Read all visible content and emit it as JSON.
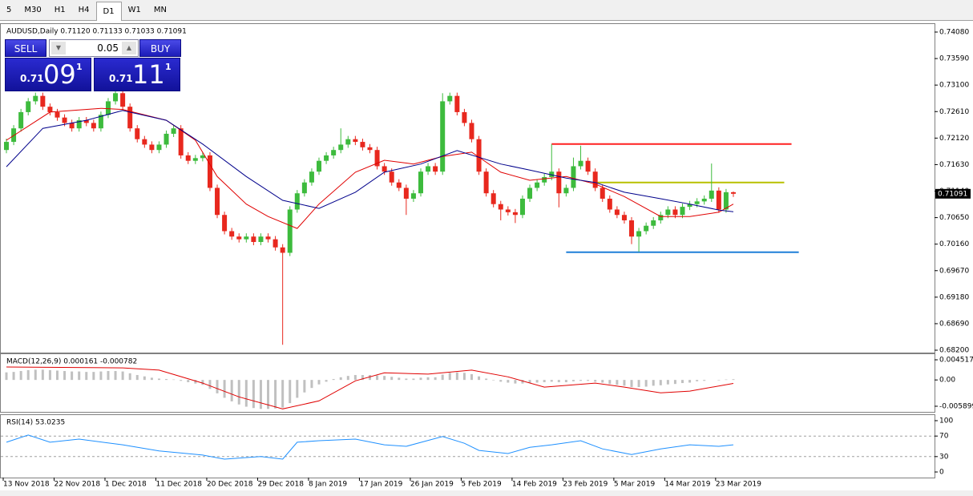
{
  "toolbar": {
    "tabs": [
      "5",
      "M30",
      "H1",
      "H4",
      "D1",
      "W1",
      "MN"
    ]
  },
  "trade_panel": {
    "sell": "SELL",
    "buy": "BUY",
    "lot": "0.05",
    "sell_price": {
      "small": "0.71",
      "big": "09",
      "pip": "1"
    },
    "buy_price": {
      "small": "0.71",
      "big": "11",
      "pip": "1"
    }
  },
  "chart_data": [
    {
      "type": "candlestick",
      "title": "AUDUSD,Daily  0.71120 0.71133 0.71033 0.71091",
      "up_color": "#3dbb3d",
      "down_color": "#e8281e",
      "ohlc": [
        [
          0.719,
          0.7211,
          0.7184,
          0.7205
        ],
        [
          0.7205,
          0.7236,
          0.7199,
          0.723
        ],
        [
          0.723,
          0.7266,
          0.7224,
          0.726
        ],
        [
          0.726,
          0.7286,
          0.7254,
          0.728
        ],
        [
          0.728,
          0.7296,
          0.7274,
          0.729
        ],
        [
          0.729,
          0.7296,
          0.7264,
          0.727
        ],
        [
          0.727,
          0.7276,
          0.7254,
          0.726
        ],
        [
          0.726,
          0.7266,
          0.7244,
          0.725
        ],
        [
          0.725,
          0.7256,
          0.7234,
          0.724
        ],
        [
          0.724,
          0.7246,
          0.7224,
          0.723
        ],
        [
          0.723,
          0.7251,
          0.7224,
          0.7245
        ],
        [
          0.7245,
          0.7251,
          0.7234,
          0.724
        ],
        [
          0.724,
          0.7246,
          0.7224,
          0.723
        ],
        [
          0.723,
          0.7261,
          0.7224,
          0.7255
        ],
        [
          0.7255,
          0.7286,
          0.7249,
          0.728
        ],
        [
          0.728,
          0.7301,
          0.7274,
          0.7295
        ],
        [
          0.7295,
          0.7301,
          0.7264,
          0.727
        ],
        [
          0.727,
          0.7276,
          0.7224,
          0.723
        ],
        [
          0.723,
          0.7236,
          0.7204,
          0.721
        ],
        [
          0.721,
          0.7216,
          0.7194,
          0.72
        ],
        [
          0.72,
          0.7206,
          0.7184,
          0.719
        ],
        [
          0.719,
          0.7206,
          0.7184,
          0.72
        ],
        [
          0.72,
          0.7226,
          0.7194,
          0.722
        ],
        [
          0.722,
          0.7236,
          0.7214,
          0.723
        ],
        [
          0.723,
          0.7236,
          0.7174,
          0.718
        ],
        [
          0.718,
          0.7186,
          0.7164,
          0.717
        ],
        [
          0.717,
          0.7181,
          0.7164,
          0.7175
        ],
        [
          0.7175,
          0.7186,
          0.7169,
          0.718
        ],
        [
          0.718,
          0.7186,
          0.7114,
          0.712
        ],
        [
          0.712,
          0.7126,
          0.7064,
          0.707
        ],
        [
          0.707,
          0.7076,
          0.7034,
          0.704
        ],
        [
          0.704,
          0.7046,
          0.7024,
          0.703
        ],
        [
          0.703,
          0.7036,
          0.7019,
          0.7025
        ],
        [
          0.7025,
          0.7036,
          0.7019,
          0.703
        ],
        [
          0.703,
          0.7036,
          0.7014,
          0.702
        ],
        [
          0.702,
          0.7036,
          0.7014,
          0.703
        ],
        [
          0.703,
          0.7036,
          0.7019,
          0.7025
        ],
        [
          0.7025,
          0.7031,
          0.7004,
          0.701
        ],
        [
          0.701,
          0.7016,
          0.683,
          0.7
        ],
        [
          0.7,
          0.7086,
          0.6994,
          0.708
        ],
        [
          0.708,
          0.7116,
          0.7074,
          0.711
        ],
        [
          0.711,
          0.7136,
          0.7104,
          0.713
        ],
        [
          0.713,
          0.7156,
          0.7124,
          0.715
        ],
        [
          0.715,
          0.7176,
          0.7144,
          0.717
        ],
        [
          0.717,
          0.7186,
          0.7164,
          0.718
        ],
        [
          0.718,
          0.7196,
          0.7174,
          0.719
        ],
        [
          0.719,
          0.723,
          0.7184,
          0.72
        ],
        [
          0.72,
          0.7216,
          0.7194,
          0.721
        ],
        [
          0.721,
          0.7216,
          0.7199,
          0.7205
        ],
        [
          0.7205,
          0.7211,
          0.7189,
          0.7195
        ],
        [
          0.7195,
          0.7201,
          0.7184,
          0.719
        ],
        [
          0.719,
          0.7196,
          0.7154,
          0.716
        ],
        [
          0.716,
          0.7166,
          0.7144,
          0.715
        ],
        [
          0.715,
          0.7156,
          0.7124,
          0.713
        ],
        [
          0.713,
          0.7136,
          0.7114,
          0.712
        ],
        [
          0.712,
          0.7126,
          0.707,
          0.71
        ],
        [
          0.71,
          0.7116,
          0.7094,
          0.711
        ],
        [
          0.711,
          0.7156,
          0.7104,
          0.715
        ],
        [
          0.715,
          0.7166,
          0.7144,
          0.716
        ],
        [
          0.716,
          0.7166,
          0.7144,
          0.715
        ],
        [
          0.715,
          0.7295,
          0.7144,
          0.728
        ],
        [
          0.728,
          0.7296,
          0.7274,
          0.729
        ],
        [
          0.729,
          0.7296,
          0.7254,
          0.726
        ],
        [
          0.726,
          0.7266,
          0.7234,
          0.724
        ],
        [
          0.724,
          0.7246,
          0.7204,
          0.721
        ],
        [
          0.721,
          0.7216,
          0.7144,
          0.715
        ],
        [
          0.715,
          0.7156,
          0.7104,
          0.711
        ],
        [
          0.711,
          0.7116,
          0.7084,
          0.709
        ],
        [
          0.709,
          0.7096,
          0.706,
          0.708
        ],
        [
          0.708,
          0.7086,
          0.7069,
          0.7075
        ],
        [
          0.7075,
          0.7081,
          0.7055,
          0.707
        ],
        [
          0.707,
          0.7106,
          0.7064,
          0.71
        ],
        [
          0.71,
          0.7126,
          0.7094,
          0.712
        ],
        [
          0.712,
          0.7136,
          0.7114,
          0.713
        ],
        [
          0.713,
          0.7146,
          0.7124,
          0.714
        ],
        [
          0.714,
          0.7201,
          0.7134,
          0.715
        ],
        [
          0.715,
          0.7156,
          0.7084,
          0.711
        ],
        [
          0.711,
          0.7126,
          0.7104,
          0.712
        ],
        [
          0.712,
          0.7176,
          0.7114,
          0.716
        ],
        [
          0.716,
          0.7198,
          0.7154,
          0.717
        ],
        [
          0.717,
          0.7176,
          0.7144,
          0.715
        ],
        [
          0.715,
          0.7156,
          0.7114,
          0.712
        ],
        [
          0.712,
          0.7126,
          0.7094,
          0.71
        ],
        [
          0.71,
          0.7106,
          0.7074,
          0.708
        ],
        [
          0.708,
          0.7086,
          0.7064,
          0.707
        ],
        [
          0.707,
          0.7076,
          0.7054,
          0.706
        ],
        [
          0.706,
          0.7066,
          0.7016,
          0.703
        ],
        [
          0.703,
          0.7046,
          0.7002,
          0.704
        ],
        [
          0.704,
          0.7056,
          0.7034,
          0.705
        ],
        [
          0.705,
          0.7066,
          0.7044,
          0.706
        ],
        [
          0.706,
          0.7076,
          0.7054,
          0.707
        ],
        [
          0.707,
          0.7086,
          0.7064,
          0.708
        ],
        [
          0.708,
          0.7086,
          0.7064,
          0.707
        ],
        [
          0.707,
          0.7091,
          0.7064,
          0.7085
        ],
        [
          0.7085,
          0.7096,
          0.7079,
          0.709
        ],
        [
          0.709,
          0.7101,
          0.7084,
          0.7095
        ],
        [
          0.7095,
          0.7106,
          0.7089,
          0.71
        ],
        [
          0.71,
          0.7165,
          0.7094,
          0.7115
        ],
        [
          0.7115,
          0.7121,
          0.7074,
          0.708
        ],
        [
          0.708,
          0.7118,
          0.7074,
          0.7112
        ],
        [
          0.7112,
          0.71133,
          0.71033,
          0.71091
        ]
      ],
      "lines": [
        {
          "color": "#e00000",
          "x": [
            0,
            6,
            13,
            16,
            22,
            26,
            29,
            33,
            36,
            40,
            43,
            48,
            52,
            56,
            60,
            64,
            68,
            72,
            77,
            81,
            85,
            90,
            94,
            98,
            100
          ],
          "values": [
            0.7208,
            0.726,
            0.7267,
            0.7265,
            0.7245,
            0.7208,
            0.7141,
            0.709,
            0.7067,
            0.7045,
            0.709,
            0.7149,
            0.7171,
            0.7164,
            0.7178,
            0.7186,
            0.7149,
            0.7134,
            0.7141,
            0.7127,
            0.7104,
            0.7067,
            0.7067,
            0.7075,
            0.709
          ]
        },
        {
          "color": "#00008b",
          "x": [
            0,
            5,
            11,
            16,
            22,
            27,
            33,
            38,
            43,
            48,
            52,
            57,
            62,
            68,
            72,
            77,
            81,
            85,
            90,
            94,
            98,
            100
          ],
          "values": [
            0.7159,
            0.723,
            0.7245,
            0.7263,
            0.7245,
            0.7201,
            0.7141,
            0.7097,
            0.7082,
            0.7112,
            0.7149,
            0.7164,
            0.7189,
            0.7164,
            0.7153,
            0.7138,
            0.713,
            0.7112,
            0.71,
            0.709,
            0.7079,
            0.7076
          ]
        }
      ],
      "hlines": [
        {
          "value": 0.7201,
          "color": "#ff2020",
          "from": 75,
          "to": 108
        },
        {
          "value": 0.713,
          "color": "#b8c000",
          "from": 81,
          "to": 107
        },
        {
          "value": 0.7001,
          "color": "#1e7fd8",
          "from": 77,
          "to": 109
        }
      ],
      "last_price": {
        "value": 0.71091,
        "label": "0.71091"
      },
      "ylim": [
        0.68156,
        0.74228
      ],
      "yticks": [
        {
          "value": 0.7408,
          "label": "0.74080"
        },
        {
          "value": 0.7359,
          "label": "0.73590"
        },
        {
          "value": 0.731,
          "label": "0.73100"
        },
        {
          "value": 0.7261,
          "label": "0.72610"
        },
        {
          "value": 0.7212,
          "label": "0.72120"
        },
        {
          "value": 0.7163,
          "label": "0.71630"
        },
        {
          "value": 0.7114,
          "label": "0.71140"
        },
        {
          "value": 0.7065,
          "label": "0.70650"
        },
        {
          "value": 0.7016,
          "label": "0.70160"
        },
        {
          "value": 0.6967,
          "label": "0.69670"
        },
        {
          "value": 0.6918,
          "label": "0.69180"
        },
        {
          "value": 0.6869,
          "label": "0.68690"
        },
        {
          "value": 0.682,
          "label": "0.68200"
        }
      ],
      "xticks": [
        {
          "value": 0,
          "label": "13 Nov 2018"
        },
        {
          "value": 7,
          "label": "22 Nov 2018"
        },
        {
          "value": 14,
          "label": "1 Dec 2018"
        },
        {
          "value": 21,
          "label": "11 Dec 2018"
        },
        {
          "value": 28,
          "label": "20 Dec 2018"
        },
        {
          "value": 35,
          "label": "29 Dec 2018"
        },
        {
          "value": 42,
          "label": "8 Jan 2019"
        },
        {
          "value": 49,
          "label": "17 Jan 2019"
        },
        {
          "value": 56,
          "label": "26 Jan 2019"
        },
        {
          "value": 63,
          "label": "5 Feb 2019"
        },
        {
          "value": 70,
          "label": "14 Feb 2019"
        },
        {
          "value": 77,
          "label": "23 Feb 2019"
        },
        {
          "value": 84,
          "label": "5 Mar 2019"
        },
        {
          "value": 91,
          "label": "14 Mar 2019"
        },
        {
          "value": 98,
          "label": "23 Mar 2019"
        }
      ]
    },
    {
      "type": "macd",
      "title": "MACD(12,26,9) 0.000161 -0.000782",
      "color": "#c0c0c0",
      "values": [
        0.0017,
        0.0018,
        0.002,
        0.0022,
        0.0023,
        0.0023,
        0.0022,
        0.0021,
        0.002,
        0.0019,
        0.0019,
        0.0018,
        0.0018,
        0.0019,
        0.002,
        0.002,
        0.0019,
        0.0015,
        0.0011,
        0.0008,
        0.0005,
        0.0003,
        0.0002,
        0.0001,
        -0.0002,
        -0.0005,
        -0.0008,
        -0.0011,
        -0.002,
        -0.003,
        -0.004,
        -0.0048,
        -0.0055,
        -0.006,
        -0.0063,
        -0.0065,
        -0.0065,
        -0.0064,
        -0.0062,
        -0.0052,
        -0.004,
        -0.0028,
        -0.0018,
        -0.001,
        -0.0004,
        0.0002,
        0.0006,
        0.0009,
        0.0011,
        0.0011,
        0.0011,
        0.001,
        0.0009,
        0.0007,
        0.0005,
        0.0003,
        0.0003,
        0.0005,
        0.0006,
        0.0006,
        0.0012,
        0.0016,
        0.0017,
        0.0016,
        0.0013,
        0.0008,
        0.0003,
        -0.0001,
        -0.0004,
        -0.0006,
        -0.0008,
        -0.0008,
        -0.0007,
        -0.0006,
        -0.0005,
        -0.0004,
        -0.0005,
        -0.0005,
        -0.0003,
        -0.0002,
        -0.0002,
        -0.0004,
        -0.0006,
        -0.0009,
        -0.0011,
        -0.0013,
        -0.0016,
        -0.0016,
        -0.0015,
        -0.0013,
        -0.0012,
        -0.001,
        -0.0009,
        -0.0007,
        -0.0006,
        -0.0003,
        -0.0002,
        0.0,
        -0.0001,
        0.0001,
        0.000161
      ],
      "lines": [
        {
          "color": "#e00000",
          "x": [
            0,
            16,
            21,
            27,
            32,
            38,
            43,
            48,
            52,
            58,
            64,
            69,
            74,
            81,
            85,
            90,
            94,
            100
          ],
          "values": [
            0.0029,
            0.0027,
            0.0022,
            -0.0007,
            -0.0038,
            -0.0065,
            -0.0047,
            -0.0002,
            0.0016,
            0.0013,
            0.0022,
            0.0007,
            -0.0016,
            -0.0007,
            -0.0016,
            -0.0029,
            -0.0025,
            -0.000782
          ]
        }
      ],
      "ylim": [
        -0.00716,
        0.00578
      ],
      "yticks": [
        0.004517,
        {
          "value": 0,
          "label": "0.00"
        },
        -0.005899
      ]
    },
    {
      "type": "line",
      "title": "RSI(14) 53.0235",
      "lines": [
        {
          "color": "#1e90ff",
          "x": [
            0,
            3,
            6,
            10,
            16,
            21,
            27,
            30,
            35,
            38,
            40,
            43,
            48,
            52,
            55,
            60,
            63,
            65,
            69,
            72,
            75,
            79,
            82,
            86,
            90,
            94,
            98,
            100
          ],
          "values": [
            58,
            72,
            58,
            64,
            53,
            41,
            33,
            25,
            30,
            25,
            58,
            61,
            64,
            53,
            50,
            69,
            56,
            42,
            36,
            48,
            53,
            61,
            45,
            34,
            45,
            53,
            50,
            53.0235
          ]
        }
      ],
      "levels": [
        70,
        30
      ],
      "ylim": [
        -10.9,
        110.9
      ],
      "yticks": [
        100,
        70,
        30,
        0
      ]
    }
  ]
}
